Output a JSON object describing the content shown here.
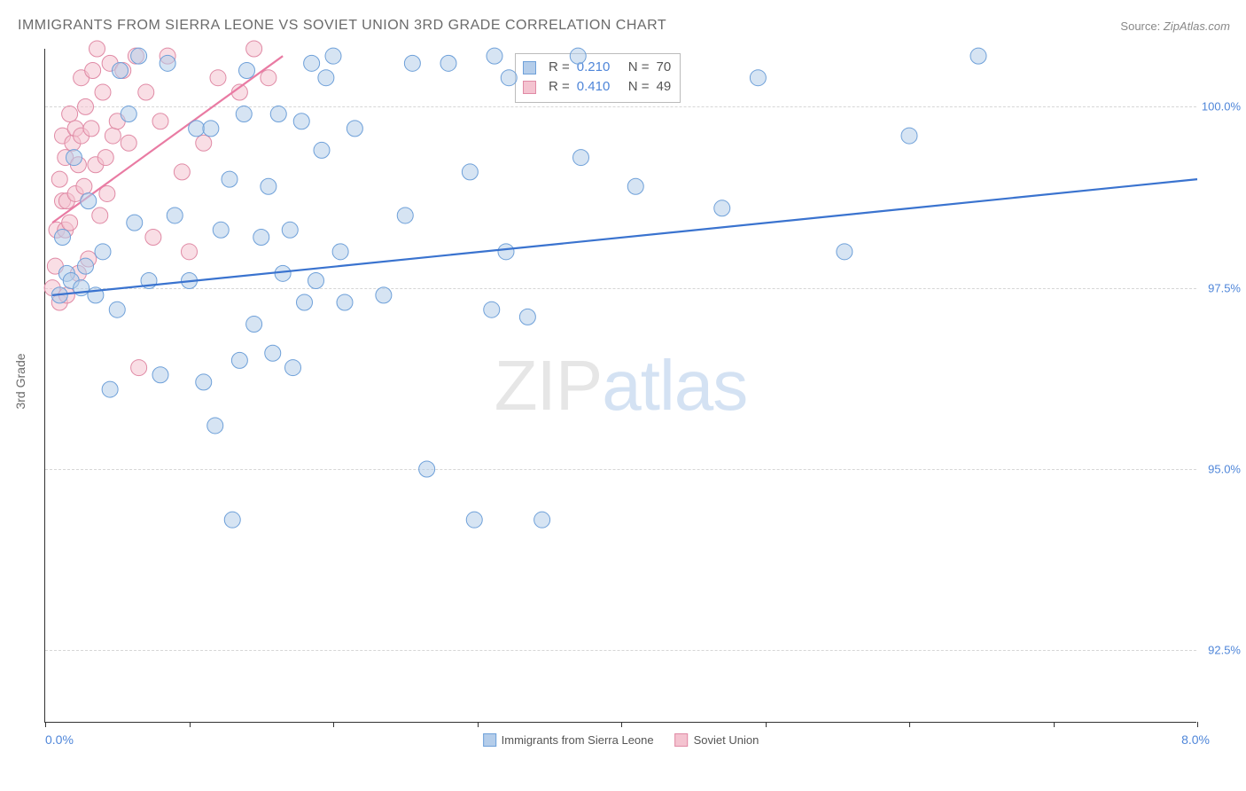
{
  "title": "IMMIGRANTS FROM SIERRA LEONE VS SOVIET UNION 3RD GRADE CORRELATION CHART",
  "source_label": "Source:",
  "source_value": "ZipAtlas.com",
  "y_axis_label": "3rd Grade",
  "x_min_label": "0.0%",
  "x_max_label": "8.0%",
  "watermark_zip": "ZIP",
  "watermark_atlas": "atlas",
  "chart": {
    "type": "scatter",
    "xlim": [
      0,
      8
    ],
    "ylim": [
      91.5,
      100.8
    ],
    "y_ticks": [
      92.5,
      95.0,
      97.5,
      100.0
    ],
    "y_tick_labels": [
      "92.5%",
      "95.0%",
      "97.5%",
      "100.0%"
    ],
    "x_tick_positions": [
      0,
      1,
      2,
      3,
      4,
      5,
      6,
      7,
      8
    ],
    "grid_color": "#d6d6d6",
    "background_color": "#ffffff",
    "marker_radius": 9,
    "marker_stroke_width": 1,
    "line_width": 2.2
  },
  "series": {
    "sierra_leone": {
      "label": "Immigrants from Sierra Leone",
      "R": "0.210",
      "N": "70",
      "fill": "#b4cdea",
      "stroke": "#6ea0d9",
      "fill_opacity": 0.55,
      "trend_color": "#3a73cf",
      "trend": [
        [
          0.05,
          97.4
        ],
        [
          8.0,
          99.0
        ]
      ],
      "points": [
        [
          0.1,
          97.4
        ],
        [
          0.12,
          98.2
        ],
        [
          0.15,
          97.7
        ],
        [
          0.18,
          97.6
        ],
        [
          0.2,
          99.3
        ],
        [
          0.25,
          97.5
        ],
        [
          0.28,
          97.8
        ],
        [
          0.3,
          98.7
        ],
        [
          0.35,
          97.4
        ],
        [
          0.4,
          98.0
        ],
        [
          0.45,
          96.1
        ],
        [
          0.5,
          97.2
        ],
        [
          0.52,
          100.5
        ],
        [
          0.58,
          99.9
        ],
        [
          0.62,
          98.4
        ],
        [
          0.65,
          100.7
        ],
        [
          0.72,
          97.6
        ],
        [
          0.8,
          96.3
        ],
        [
          0.85,
          100.6
        ],
        [
          0.9,
          98.5
        ],
        [
          1.0,
          97.6
        ],
        [
          1.05,
          99.7
        ],
        [
          1.1,
          96.2
        ],
        [
          1.15,
          99.7
        ],
        [
          1.18,
          95.6
        ],
        [
          1.22,
          98.3
        ],
        [
          1.28,
          99.0
        ],
        [
          1.3,
          94.3
        ],
        [
          1.35,
          96.5
        ],
        [
          1.38,
          99.9
        ],
        [
          1.4,
          100.5
        ],
        [
          1.45,
          97.0
        ],
        [
          1.5,
          98.2
        ],
        [
          1.55,
          98.9
        ],
        [
          1.58,
          96.6
        ],
        [
          1.62,
          99.9
        ],
        [
          1.65,
          97.7
        ],
        [
          1.7,
          98.3
        ],
        [
          1.72,
          96.4
        ],
        [
          1.78,
          99.8
        ],
        [
          1.8,
          97.3
        ],
        [
          1.85,
          100.6
        ],
        [
          1.88,
          97.6
        ],
        [
          1.92,
          99.4
        ],
        [
          1.95,
          100.4
        ],
        [
          2.0,
          100.7
        ],
        [
          2.05,
          98.0
        ],
        [
          2.08,
          97.3
        ],
        [
          2.15,
          99.7
        ],
        [
          2.35,
          97.4
        ],
        [
          2.5,
          98.5
        ],
        [
          2.55,
          100.6
        ],
        [
          2.65,
          95.0
        ],
        [
          2.8,
          100.6
        ],
        [
          2.95,
          99.1
        ],
        [
          2.98,
          94.3
        ],
        [
          3.1,
          97.2
        ],
        [
          3.12,
          100.7
        ],
        [
          3.2,
          98.0
        ],
        [
          3.22,
          100.4
        ],
        [
          3.35,
          97.1
        ],
        [
          3.45,
          94.3
        ],
        [
          3.7,
          100.7
        ],
        [
          3.72,
          99.3
        ],
        [
          4.1,
          98.9
        ],
        [
          4.7,
          98.6
        ],
        [
          4.95,
          100.4
        ],
        [
          5.55,
          98.0
        ],
        [
          6.0,
          99.6
        ],
        [
          6.48,
          100.7
        ]
      ]
    },
    "soviet_union": {
      "label": "Soviet Union",
      "R": "0.410",
      "N": "49",
      "fill": "#f4c3d0",
      "stroke": "#e08aa5",
      "fill_opacity": 0.55,
      "trend_color": "#e97ba3",
      "trend": [
        [
          0.05,
          98.4
        ],
        [
          1.65,
          100.7
        ]
      ],
      "points": [
        [
          0.05,
          97.5
        ],
        [
          0.07,
          97.8
        ],
        [
          0.08,
          98.3
        ],
        [
          0.1,
          99.0
        ],
        [
          0.1,
          97.3
        ],
        [
          0.12,
          98.7
        ],
        [
          0.12,
          99.6
        ],
        [
          0.14,
          99.3
        ],
        [
          0.14,
          98.3
        ],
        [
          0.15,
          98.7
        ],
        [
          0.15,
          97.4
        ],
        [
          0.17,
          99.9
        ],
        [
          0.17,
          98.4
        ],
        [
          0.19,
          99.5
        ],
        [
          0.21,
          98.8
        ],
        [
          0.21,
          99.7
        ],
        [
          0.23,
          99.2
        ],
        [
          0.23,
          97.7
        ],
        [
          0.25,
          99.6
        ],
        [
          0.25,
          100.4
        ],
        [
          0.27,
          98.9
        ],
        [
          0.28,
          100.0
        ],
        [
          0.3,
          97.9
        ],
        [
          0.32,
          99.7
        ],
        [
          0.33,
          100.5
        ],
        [
          0.35,
          99.2
        ],
        [
          0.36,
          100.8
        ],
        [
          0.38,
          98.5
        ],
        [
          0.4,
          100.2
        ],
        [
          0.42,
          99.3
        ],
        [
          0.43,
          98.8
        ],
        [
          0.45,
          100.6
        ],
        [
          0.47,
          99.6
        ],
        [
          0.5,
          99.8
        ],
        [
          0.54,
          100.5
        ],
        [
          0.58,
          99.5
        ],
        [
          0.63,
          100.7
        ],
        [
          0.65,
          96.4
        ],
        [
          0.7,
          100.2
        ],
        [
          0.75,
          98.2
        ],
        [
          0.8,
          99.8
        ],
        [
          0.85,
          100.7
        ],
        [
          0.95,
          99.1
        ],
        [
          1.0,
          98.0
        ],
        [
          1.1,
          99.5
        ],
        [
          1.2,
          100.4
        ],
        [
          1.35,
          100.2
        ],
        [
          1.45,
          100.8
        ],
        [
          1.55,
          100.4
        ]
      ]
    }
  },
  "legend": {
    "R_label": "R =",
    "N_label": "N ="
  }
}
